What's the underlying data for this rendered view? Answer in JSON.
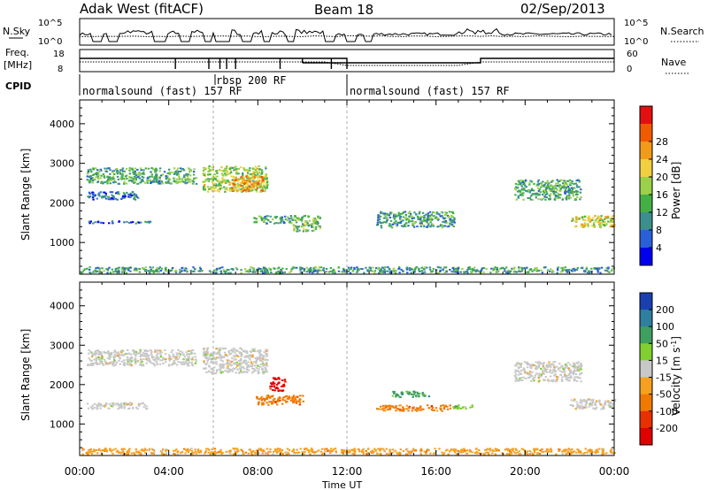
{
  "header": {
    "station": "Adak West (fitACF)",
    "beam": "Beam 18",
    "date": "02/Sep/2013"
  },
  "summary_panel": {
    "nsky_label": "N.Sky",
    "nsearch_label": "N.Search",
    "noise_left_ticks": [
      "10^5",
      "10^0"
    ],
    "noise_right_ticks": [
      "10^5",
      "10^0"
    ],
    "freq_label": "Freq.",
    "freq_unit": "[MHz]",
    "freq_ticks": [
      "18",
      "8"
    ],
    "nave_label": "Nave",
    "nave_ticks": [
      "60",
      "0"
    ],
    "cpid_label": "CPID",
    "cpid_segments": [
      {
        "start_hour": 0.0,
        "end_hour": 6.1,
        "label": "normalsound (fast) 157 RF"
      },
      {
        "start_hour": 6.1,
        "end_hour": 12.0,
        "label": "rbsp 200 RF"
      },
      {
        "start_hour": 12.0,
        "end_hour": 24.0,
        "label": "normalsound (fast) 157 RF"
      }
    ]
  },
  "time_axis": {
    "label": "Time UT",
    "ticks": [
      "00:00",
      "04:00",
      "08:00",
      "12:00",
      "16:00",
      "20:00",
      "00:00"
    ]
  },
  "chart_data": [
    {
      "type": "heatmap",
      "name": "power",
      "xlabel": "Time UT",
      "ylabel": "Slant Range [km]",
      "y_ticks": [
        1000,
        2000,
        3000,
        4000
      ],
      "ylim": [
        200,
        4600
      ],
      "xlim_hours": [
        0,
        24
      ],
      "colorbar": {
        "label": "Power [dB]",
        "ticks": [
          "4",
          "8",
          "12",
          "16",
          "20",
          "24",
          "28"
        ],
        "colors": [
          "#0000ee",
          "#2a5fd8",
          "#3d8f8f",
          "#44b044",
          "#9ad04a",
          "#f0d040",
          "#f29a1a",
          "#f05a00",
          "#e21010"
        ]
      },
      "regions": [
        {
          "t": [
            0.3,
            5.2
          ],
          "r": [
            2500,
            2900
          ],
          "level": 0.35
        },
        {
          "t": [
            5.5,
            8.4
          ],
          "r": [
            2300,
            2950
          ],
          "level": 0.5
        },
        {
          "t": [
            6.8,
            8.2
          ],
          "r": [
            2300,
            2700
          ],
          "level": 0.75
        },
        {
          "t": [
            0.3,
            3.2
          ],
          "r": [
            1500,
            1560
          ],
          "level": 0.15
        },
        {
          "t": [
            0.3,
            2.6
          ],
          "r": [
            2100,
            2300
          ],
          "level": 0.2
        },
        {
          "t": [
            7.8,
            9.5
          ],
          "r": [
            1500,
            1700
          ],
          "level": 0.35
        },
        {
          "t": [
            13.3,
            16.8
          ],
          "r": [
            1400,
            1800
          ],
          "level": 0.3
        },
        {
          "t": [
            19.5,
            22.5
          ],
          "r": [
            2100,
            2600
          ],
          "level": 0.35
        },
        {
          "t": [
            22.0,
            24.0
          ],
          "r": [
            1400,
            1700
          ],
          "level": 0.55
        },
        {
          "t": [
            9.5,
            10.8
          ],
          "r": [
            1300,
            1700
          ],
          "level": 0.4
        },
        {
          "t": [
            0.0,
            24.0
          ],
          "r": [
            250,
            400
          ],
          "level": 0.3
        }
      ]
    },
    {
      "type": "heatmap",
      "name": "velocity",
      "xlabel": "Time UT",
      "ylabel": "Slant Range [km]",
      "y_ticks": [
        1000,
        2000,
        3000,
        4000
      ],
      "ylim": [
        200,
        4600
      ],
      "xlim_hours": [
        0,
        24
      ],
      "colorbar": {
        "label": "Velocity [m s^-1]",
        "unit_exponent": "-1",
        "ticks": [
          "200",
          "100",
          "50",
          "15",
          "-15",
          "-50",
          "-100",
          "-200"
        ],
        "colors": [
          "#1a3fb0",
          "#2f7f9f",
          "#3f9f5f",
          "#7fd030",
          "#c8c8c8",
          "#f5a020",
          "#f07a00",
          "#e83000",
          "#e00000"
        ]
      },
      "regions": [
        {
          "t": [
            0.3,
            5.2
          ],
          "r": [
            2500,
            2900
          ],
          "color_index": 4
        },
        {
          "t": [
            0.3,
            3.0
          ],
          "r": [
            1400,
            1560
          ],
          "color_index": 4
        },
        {
          "t": [
            5.5,
            8.4
          ],
          "r": [
            2300,
            2950
          ],
          "color_index": 4
        },
        {
          "t": [
            8.5,
            9.2
          ],
          "r": [
            1850,
            2200
          ],
          "color_index": 8
        },
        {
          "t": [
            7.9,
            10.0
          ],
          "r": [
            1500,
            1750
          ],
          "color_index": 6
        },
        {
          "t": [
            13.3,
            16.6
          ],
          "r": [
            1350,
            1500
          ],
          "color_index": 6
        },
        {
          "t": [
            16.6,
            17.6
          ],
          "r": [
            1400,
            1500
          ],
          "color_index": 3
        },
        {
          "t": [
            14.0,
            15.8
          ],
          "r": [
            1700,
            1850
          ],
          "color_index": 2
        },
        {
          "t": [
            19.5,
            22.5
          ],
          "r": [
            2100,
            2600
          ],
          "color_index": 4
        },
        {
          "t": [
            22.0,
            24.0
          ],
          "r": [
            1400,
            1650
          ],
          "color_index": 4
        },
        {
          "t": [
            0.0,
            24.0
          ],
          "r": [
            250,
            400
          ],
          "color_index": 5
        }
      ]
    }
  ]
}
